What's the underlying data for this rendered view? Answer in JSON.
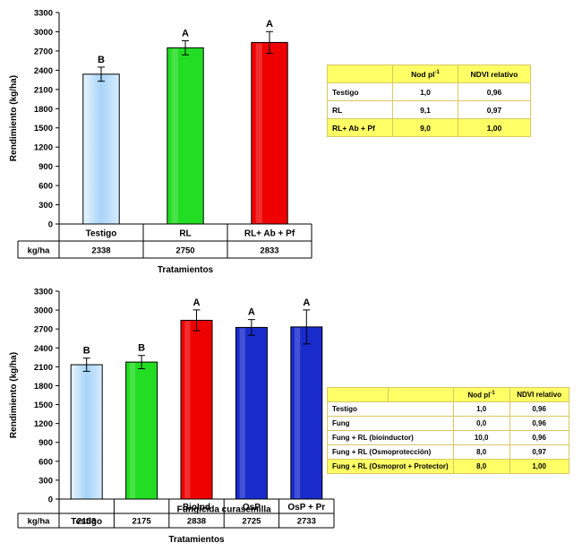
{
  "colors": {
    "testigo": "#bfe3ff",
    "rl": "#22dd22",
    "red": "#ee0000",
    "blue": "#1a2bcc",
    "table_yellow": "#ffff66"
  },
  "chart_data": [
    {
      "type": "bar",
      "ylabel": "Rendimiento (kg/ha)",
      "xlabel": "Tratamientos",
      "ylim": [
        0,
        3300
      ],
      "yticks": [
        0,
        300,
        600,
        900,
        1200,
        1500,
        1800,
        2100,
        2400,
        2700,
        3000,
        3300
      ],
      "grid": false,
      "categories": [
        "Testigo",
        "RL",
        "RL+ Ab + Pf"
      ],
      "values": [
        2338,
        2750,
        2833
      ],
      "errors": [
        110,
        110,
        170
      ],
      "letters": [
        "B",
        "A",
        "A"
      ],
      "bar_colors": [
        "#bfe3ff",
        "#22dd22",
        "#ee0000"
      ],
      "row_header": "kg/ha",
      "row_values": [
        "2338",
        "2750",
        "2833"
      ]
    },
    {
      "type": "bar",
      "ylabel": "Rendimiento (kg/ha)",
      "xlabel": "Tratamientos",
      "ylim": [
        0,
        3300
      ],
      "yticks": [
        0,
        300,
        600,
        900,
        1200,
        1500,
        1800,
        2100,
        2400,
        2700,
        3000,
        3300
      ],
      "grid": false,
      "categories": [
        "Testigo",
        "",
        "BioInd",
        "OsP",
        "OsP + Pr"
      ],
      "group_label": "Fungicida curasemilla",
      "values": [
        2133,
        2175,
        2838,
        2725,
        2733
      ],
      "errors": [
        105,
        105,
        165,
        125,
        270
      ],
      "letters": [
        "B",
        "B",
        "A",
        "A",
        "A"
      ],
      "bar_colors": [
        "#bfe3ff",
        "#22dd22",
        "#ee0000",
        "#1a2bcc",
        "#1a2bcc"
      ],
      "row_header": "kg/ha",
      "row_values": [
        "2133",
        "2175",
        "2838",
        "2725",
        "2733"
      ]
    }
  ],
  "table1": {
    "headers": [
      "",
      "Nod pl",
      "-1",
      "NDVI relativo"
    ],
    "rows": [
      {
        "name": "Testigo",
        "nod": "1,0",
        "ndvi": "0,96"
      },
      {
        "name": "RL",
        "nod": "9,1",
        "ndvi": "0,97"
      },
      {
        "name": "RL+ Ab + Pf",
        "nod": "9,0",
        "ndvi": "1,00"
      }
    ]
  },
  "table2": {
    "headers": [
      "",
      "Nod pl",
      "-1",
      "NDVI relativo"
    ],
    "rows": [
      {
        "name": "Testigo",
        "nod": "1,0",
        "ndvi": "0,96"
      },
      {
        "name": "Fung",
        "nod": "0,0",
        "ndvi": "0,96"
      },
      {
        "name": "Fung + RL (bioinductor)",
        "nod": "10,0",
        "ndvi": "0,96"
      },
      {
        "name": "Fung + RL (Osmoprotección)",
        "nod": "8,0",
        "ndvi": "0,97"
      },
      {
        "name": "Fung + RL (Osmoprot + Protector)",
        "nod": "8,0",
        "ndvi": "1,00"
      }
    ]
  }
}
